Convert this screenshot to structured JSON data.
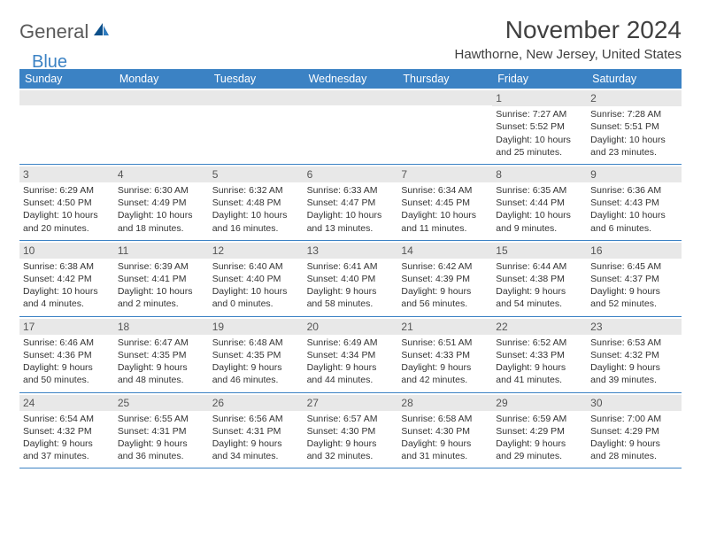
{
  "logo": {
    "text1": "General",
    "text2": "Blue"
  },
  "title": "November 2024",
  "location": "Hawthorne, New Jersey, United States",
  "colors": {
    "header_bg": "#3b82c4",
    "header_text": "#ffffff",
    "daynum_bg": "#e8e8e8",
    "text": "#333333",
    "row_border": "#3b82c4",
    "page_bg": "#ffffff"
  },
  "font": {
    "family": "Arial",
    "title_size": 28,
    "location_size": 15,
    "header_size": 12.5,
    "cell_size": 10.5
  },
  "day_names": [
    "Sunday",
    "Monday",
    "Tuesday",
    "Wednesday",
    "Thursday",
    "Friday",
    "Saturday"
  ],
  "weeks": [
    [
      null,
      null,
      null,
      null,
      null,
      {
        "n": "1",
        "sunrise": "7:27 AM",
        "sunset": "5:52 PM",
        "daylight": "10 hours and 25 minutes."
      },
      {
        "n": "2",
        "sunrise": "7:28 AM",
        "sunset": "5:51 PM",
        "daylight": "10 hours and 23 minutes."
      }
    ],
    [
      {
        "n": "3",
        "sunrise": "6:29 AM",
        "sunset": "4:50 PM",
        "daylight": "10 hours and 20 minutes."
      },
      {
        "n": "4",
        "sunrise": "6:30 AM",
        "sunset": "4:49 PM",
        "daylight": "10 hours and 18 minutes."
      },
      {
        "n": "5",
        "sunrise": "6:32 AM",
        "sunset": "4:48 PM",
        "daylight": "10 hours and 16 minutes."
      },
      {
        "n": "6",
        "sunrise": "6:33 AM",
        "sunset": "4:47 PM",
        "daylight": "10 hours and 13 minutes."
      },
      {
        "n": "7",
        "sunrise": "6:34 AM",
        "sunset": "4:45 PM",
        "daylight": "10 hours and 11 minutes."
      },
      {
        "n": "8",
        "sunrise": "6:35 AM",
        "sunset": "4:44 PM",
        "daylight": "10 hours and 9 minutes."
      },
      {
        "n": "9",
        "sunrise": "6:36 AM",
        "sunset": "4:43 PM",
        "daylight": "10 hours and 6 minutes."
      }
    ],
    [
      {
        "n": "10",
        "sunrise": "6:38 AM",
        "sunset": "4:42 PM",
        "daylight": "10 hours and 4 minutes."
      },
      {
        "n": "11",
        "sunrise": "6:39 AM",
        "sunset": "4:41 PM",
        "daylight": "10 hours and 2 minutes."
      },
      {
        "n": "12",
        "sunrise": "6:40 AM",
        "sunset": "4:40 PM",
        "daylight": "10 hours and 0 minutes."
      },
      {
        "n": "13",
        "sunrise": "6:41 AM",
        "sunset": "4:40 PM",
        "daylight": "9 hours and 58 minutes."
      },
      {
        "n": "14",
        "sunrise": "6:42 AM",
        "sunset": "4:39 PM",
        "daylight": "9 hours and 56 minutes."
      },
      {
        "n": "15",
        "sunrise": "6:44 AM",
        "sunset": "4:38 PM",
        "daylight": "9 hours and 54 minutes."
      },
      {
        "n": "16",
        "sunrise": "6:45 AM",
        "sunset": "4:37 PM",
        "daylight": "9 hours and 52 minutes."
      }
    ],
    [
      {
        "n": "17",
        "sunrise": "6:46 AM",
        "sunset": "4:36 PM",
        "daylight": "9 hours and 50 minutes."
      },
      {
        "n": "18",
        "sunrise": "6:47 AM",
        "sunset": "4:35 PM",
        "daylight": "9 hours and 48 minutes."
      },
      {
        "n": "19",
        "sunrise": "6:48 AM",
        "sunset": "4:35 PM",
        "daylight": "9 hours and 46 minutes."
      },
      {
        "n": "20",
        "sunrise": "6:49 AM",
        "sunset": "4:34 PM",
        "daylight": "9 hours and 44 minutes."
      },
      {
        "n": "21",
        "sunrise": "6:51 AM",
        "sunset": "4:33 PM",
        "daylight": "9 hours and 42 minutes."
      },
      {
        "n": "22",
        "sunrise": "6:52 AM",
        "sunset": "4:33 PM",
        "daylight": "9 hours and 41 minutes."
      },
      {
        "n": "23",
        "sunrise": "6:53 AM",
        "sunset": "4:32 PM",
        "daylight": "9 hours and 39 minutes."
      }
    ],
    [
      {
        "n": "24",
        "sunrise": "6:54 AM",
        "sunset": "4:32 PM",
        "daylight": "9 hours and 37 minutes."
      },
      {
        "n": "25",
        "sunrise": "6:55 AM",
        "sunset": "4:31 PM",
        "daylight": "9 hours and 36 minutes."
      },
      {
        "n": "26",
        "sunrise": "6:56 AM",
        "sunset": "4:31 PM",
        "daylight": "9 hours and 34 minutes."
      },
      {
        "n": "27",
        "sunrise": "6:57 AM",
        "sunset": "4:30 PM",
        "daylight": "9 hours and 32 minutes."
      },
      {
        "n": "28",
        "sunrise": "6:58 AM",
        "sunset": "4:30 PM",
        "daylight": "9 hours and 31 minutes."
      },
      {
        "n": "29",
        "sunrise": "6:59 AM",
        "sunset": "4:29 PM",
        "daylight": "9 hours and 29 minutes."
      },
      {
        "n": "30",
        "sunrise": "7:00 AM",
        "sunset": "4:29 PM",
        "daylight": "9 hours and 28 minutes."
      }
    ]
  ],
  "labels": {
    "sunrise": "Sunrise:",
    "sunset": "Sunset:",
    "daylight": "Daylight:"
  }
}
